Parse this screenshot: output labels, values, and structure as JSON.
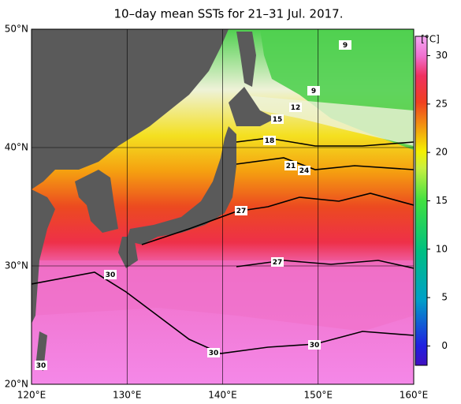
{
  "title": "10–day mean SSTs for 21–31 Jul. 2017.",
  "map": {
    "lonlim": [
      120,
      160
    ],
    "latlim": [
      20,
      50
    ],
    "lon_ticks": [
      {
        "value": 120,
        "label": "120°E"
      },
      {
        "value": 130,
        "label": "130°E"
      },
      {
        "value": 140,
        "label": "140°E"
      },
      {
        "value": 150,
        "label": "150°E"
      },
      {
        "value": 160,
        "label": "160°E"
      }
    ],
    "lat_ticks": [
      {
        "value": 20,
        "label": "20°N"
      },
      {
        "value": 30,
        "label": "30°N"
      },
      {
        "value": 40,
        "label": "40°N"
      },
      {
        "value": 50,
        "label": "50°N"
      }
    ],
    "grid": true,
    "contour_labels": [
      9,
      9,
      12,
      15,
      18,
      21,
      24,
      27,
      27,
      30,
      30,
      30,
      30
    ]
  },
  "colorbar": {
    "label": "[°C]",
    "lim": [
      -2,
      32
    ],
    "ticks": [
      0,
      5,
      10,
      15,
      20,
      25,
      30
    ]
  }
}
